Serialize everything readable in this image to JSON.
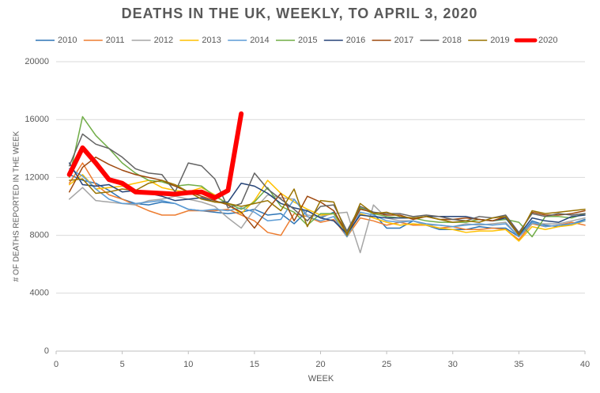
{
  "chart_data": {
    "type": "line",
    "title": "DEATHS IN THE UK, WEEKLY, TO APRIL 3, 2020",
    "xlabel": "WEEK",
    "ylabel": "# OF DEATHS REPORTED IN THE WEEK",
    "x": [
      1,
      2,
      3,
      4,
      5,
      6,
      7,
      8,
      9,
      10,
      11,
      12,
      13,
      14,
      15,
      16,
      17,
      18,
      19,
      20,
      21,
      22,
      23,
      24,
      25,
      26,
      27,
      28,
      29,
      30,
      31,
      32,
      33,
      34,
      35,
      36,
      37,
      38,
      39,
      40
    ],
    "xlim": [
      0,
      40
    ],
    "xticks": [
      0,
      5,
      10,
      15,
      20,
      25,
      30,
      35,
      40
    ],
    "ylim": [
      0,
      20000
    ],
    "yticks": [
      0,
      4000,
      8000,
      12000,
      16000,
      20000
    ],
    "grid": true,
    "legend": "top",
    "series": [
      {
        "name": "2010",
        "color": "#2e75b6",
        "line_width": 1.5,
        "values": [
          12200,
          11800,
          11600,
          11100,
          10500,
          10200,
          10100,
          10300,
          10200,
          9800,
          9700,
          9600,
          9500,
          9600,
          9800,
          9400,
          9500,
          8800,
          9700,
          9200,
          9600,
          8000,
          9900,
          9500,
          8500,
          8500,
          9000,
          8700,
          8400,
          8400,
          8400,
          8600,
          8500,
          8500,
          7900,
          9000,
          8700,
          8600,
          8800,
          9100
        ]
      },
      {
        "name": "2011",
        "color": "#ed7d31",
        "line_width": 1.5,
        "values": [
          11600,
          13000,
          11500,
          10800,
          10500,
          10100,
          9700,
          9400,
          9400,
          9700,
          9700,
          9700,
          9800,
          9400,
          9000,
          8200,
          8000,
          9500,
          9300,
          8900,
          9100,
          7900,
          9200,
          9000,
          8700,
          8900,
          8700,
          8700,
          8500,
          8600,
          8400,
          8400,
          8500,
          8400,
          7700,
          8800,
          8600,
          8700,
          8900,
          8700
        ]
      },
      {
        "name": "2012",
        "color": "#a5a5a5",
        "line_width": 1.5,
        "values": [
          10500,
          11300,
          10400,
          10300,
          10200,
          10100,
          10400,
          10500,
          10700,
          10500,
          10300,
          10000,
          9200,
          8500,
          9800,
          10800,
          10600,
          10500,
          9400,
          9300,
          9500,
          9600,
          6800,
          10100,
          9200,
          9000,
          9000,
          8700,
          8700,
          8600,
          8800,
          8700,
          8800,
          8900,
          7900,
          8800,
          8800,
          8800,
          9000,
          9200
        ]
      },
      {
        "name": "2013",
        "color": "#ffc000",
        "line_width": 1.5,
        "values": [
          11500,
          12200,
          11200,
          11300,
          11400,
          11600,
          11800,
          11300,
          11100,
          11000,
          11300,
          10800,
          10100,
          9500,
          10400,
          11800,
          10900,
          10300,
          9800,
          9400,
          9500,
          7900,
          9500,
          9200,
          8900,
          8700,
          8800,
          8700,
          8500,
          8400,
          8200,
          8300,
          8300,
          8400,
          7600,
          8600,
          8400,
          8600,
          8700,
          9000
        ]
      },
      {
        "name": "2014",
        "color": "#5b9bd5",
        "line_width": 1.5,
        "values": [
          12600,
          12100,
          11200,
          10500,
          10200,
          10200,
          10300,
          10400,
          10200,
          9800,
          9700,
          9800,
          9700,
          9900,
          9600,
          9000,
          9100,
          10500,
          9300,
          9000,
          9300,
          7900,
          9600,
          9400,
          9000,
          8900,
          9000,
          8800,
          8700,
          8600,
          8700,
          8800,
          8700,
          8800,
          7900,
          8900,
          8600,
          8700,
          8800,
          9000
        ]
      },
      {
        "name": "2015",
        "color": "#70ad47",
        "line_width": 1.5,
        "values": [
          12000,
          16200,
          14900,
          14000,
          13000,
          12300,
          11800,
          11700,
          11400,
          11500,
          11400,
          10700,
          10200,
          9800,
          10300,
          11300,
          10000,
          9600,
          8700,
          9500,
          9500,
          8200,
          9900,
          9500,
          9300,
          9200,
          9200,
          9000,
          8900,
          8900,
          8900,
          9100,
          9000,
          9100,
          8900,
          7900,
          9300,
          9300,
          9200,
          9500
        ]
      },
      {
        "name": "2016",
        "color": "#264478",
        "line_width": 1.5,
        "values": [
          13000,
          11500,
          11400,
          11500,
          11000,
          11100,
          10900,
          10700,
          10400,
          10500,
          10600,
          10300,
          10300,
          11600,
          11400,
          10900,
          10200,
          9900,
          9700,
          9200,
          9000,
          8100,
          9400,
          9300,
          9200,
          9200,
          9200,
          9300,
          9300,
          9300,
          9300,
          9100,
          9000,
          9200,
          8000,
          9200,
          9000,
          8900,
          9300,
          9400
        ]
      },
      {
        "name": "2017",
        "color": "#9e480e",
        "line_width": 1.5,
        "values": [
          11000,
          12700,
          13400,
          12900,
          12500,
          12200,
          12000,
          11800,
          11400,
          11000,
          10700,
          10400,
          10100,
          9600,
          8500,
          9800,
          10900,
          9000,
          10700,
          10300,
          9700,
          8100,
          9800,
          9600,
          9400,
          9400,
          9100,
          9300,
          9100,
          9100,
          9200,
          9100,
          9000,
          9300,
          8100,
          9600,
          9400,
          9400,
          9500,
          9700
        ]
      },
      {
        "name": "2018",
        "color": "#636363",
        "line_width": 1.5,
        "values": [
          12800,
          15000,
          14300,
          14000,
          13400,
          12600,
          12300,
          12200,
          11000,
          13000,
          12800,
          11900,
          9900,
          10200,
          12300,
          11200,
          10500,
          9800,
          9000,
          10000,
          10100,
          8300,
          10000,
          9600,
          9500,
          9500,
          9300,
          9400,
          9300,
          9100,
          9000,
          9300,
          9200,
          9400,
          8200,
          9500,
          9300,
          9500,
          9400,
          9500
        ]
      },
      {
        "name": "2019",
        "color": "#997300",
        "line_width": 1.5,
        "values": [
          11800,
          11900,
          10900,
          11000,
          11200,
          11100,
          11600,
          11800,
          11500,
          11000,
          10500,
          10300,
          10200,
          10000,
          10200,
          10400,
          9700,
          11200,
          8600,
          10400,
          10300,
          8000,
          10200,
          9500,
          9600,
          9300,
          9200,
          9300,
          9100,
          8900,
          9000,
          8900,
          9200,
          9300,
          8000,
          9700,
          9500,
          9600,
          9700,
          9800
        ]
      },
      {
        "name": "2020",
        "color": "#ff0000",
        "line_width": 6,
        "values": [
          12200,
          14050,
          13000,
          11850,
          11600,
          11000,
          10950,
          10900,
          10850,
          10950,
          11000,
          10600,
          11100,
          16400,
          null,
          null,
          null,
          null,
          null,
          null,
          null,
          null,
          null,
          null,
          null,
          null,
          null,
          null,
          null,
          null,
          null,
          null,
          null,
          null,
          null,
          null,
          null,
          null,
          null,
          null
        ]
      }
    ]
  }
}
